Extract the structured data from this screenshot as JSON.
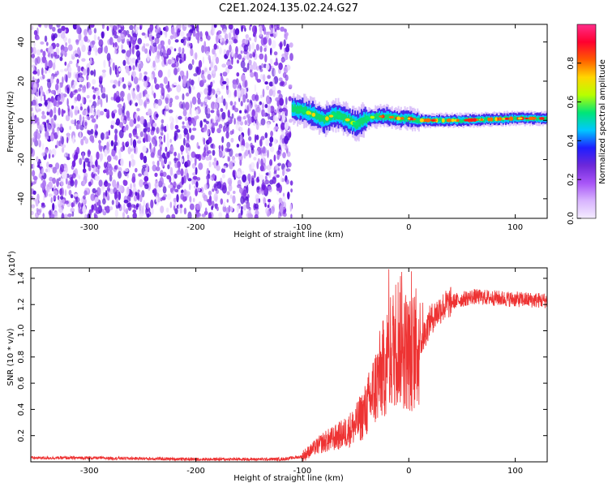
{
  "title": "C2E1.2024.135.02.24.G27",
  "chart_data": [
    {
      "type": "heatmap",
      "xlabel": "Height of straight line (km)",
      "ylabel": "Frequency (Hz)",
      "xlim": [
        -355,
        130
      ],
      "ylim": [
        -50,
        49
      ],
      "xticks": [
        -300,
        -200,
        -100,
        0,
        100
      ],
      "xtick_labels": [
        "-300",
        "-200",
        "-100",
        "0",
        "100"
      ],
      "yticks": [
        -40,
        -20,
        0,
        20,
        40
      ],
      "ytick_labels": [
        "-40",
        "-20",
        "0",
        "20",
        "40"
      ],
      "noise_region_x": [
        -355,
        -110
      ],
      "signal_trace": [
        {
          "x": -110,
          "y": 6
        },
        {
          "x": -100,
          "y": 5
        },
        {
          "x": -90,
          "y": 3
        },
        {
          "x": -80,
          "y": 0
        },
        {
          "x": -70,
          "y": 3
        },
        {
          "x": -60,
          "y": 1
        },
        {
          "x": -50,
          "y": -2
        },
        {
          "x": -40,
          "y": 1
        },
        {
          "x": -30,
          "y": 2
        },
        {
          "x": -20,
          "y": 2
        },
        {
          "x": -10,
          "y": 1
        },
        {
          "x": 0,
          "y": 1
        },
        {
          "x": 10,
          "y": 0
        },
        {
          "x": 50,
          "y": 0
        },
        {
          "x": 100,
          "y": 1
        },
        {
          "x": 130,
          "y": 1
        }
      ],
      "colorbar": {
        "label": "Normalized spectral amplitude",
        "range": [
          0,
          1
        ],
        "ticks": [
          0.0,
          0.2,
          0.4,
          0.6,
          0.8
        ],
        "tick_labels": [
          "0.0",
          "0.2",
          "0.4",
          "0.6",
          "0.8"
        ],
        "colors": [
          "#f4ecff",
          "#d8b4fe",
          "#a855f7",
          "#6d28d9",
          "#1e1eff",
          "#00c8ff",
          "#00e676",
          "#b8ff00",
          "#ffd600",
          "#ff5a00",
          "#ff0030",
          "#ff2d8a"
        ]
      }
    },
    {
      "type": "line",
      "xlabel": "Height of straight line (km)",
      "ylabel": "SNR (10 * v/v)",
      "multiplier": "(x10",
      "multiplier_exp": "4",
      "multiplier_close": ")",
      "xlim": [
        -355,
        130
      ],
      "ylim": [
        0,
        1.48
      ],
      "xticks": [
        -300,
        -200,
        -100,
        0,
        100
      ],
      "xtick_labels": [
        "-300",
        "-200",
        "-100",
        "0",
        "100"
      ],
      "yticks": [
        0.2,
        0.4,
        0.6,
        0.8,
        1.0,
        1.2,
        1.4
      ],
      "ytick_labels": [
        "0.2",
        "0.4",
        "0.6",
        "0.8",
        "1.0",
        "1.2",
        "1.4"
      ],
      "color": "#ee3333",
      "series": [
        {
          "x": [
            -355,
            -300,
            -200,
            -120,
            -100,
            -90,
            -80,
            -70,
            -60,
            -50,
            -40,
            -30,
            -20,
            -10,
            0,
            10,
            20,
            30,
            40,
            60,
            80,
            100,
            130
          ],
          "y": [
            0.03,
            0.03,
            0.02,
            0.02,
            0.04,
            0.1,
            0.15,
            0.18,
            0.22,
            0.28,
            0.4,
            0.6,
            0.78,
            0.95,
            0.82,
            0.88,
            1.08,
            1.17,
            1.22,
            1.26,
            1.25,
            1.24,
            1.23
          ]
        }
      ]
    }
  ]
}
